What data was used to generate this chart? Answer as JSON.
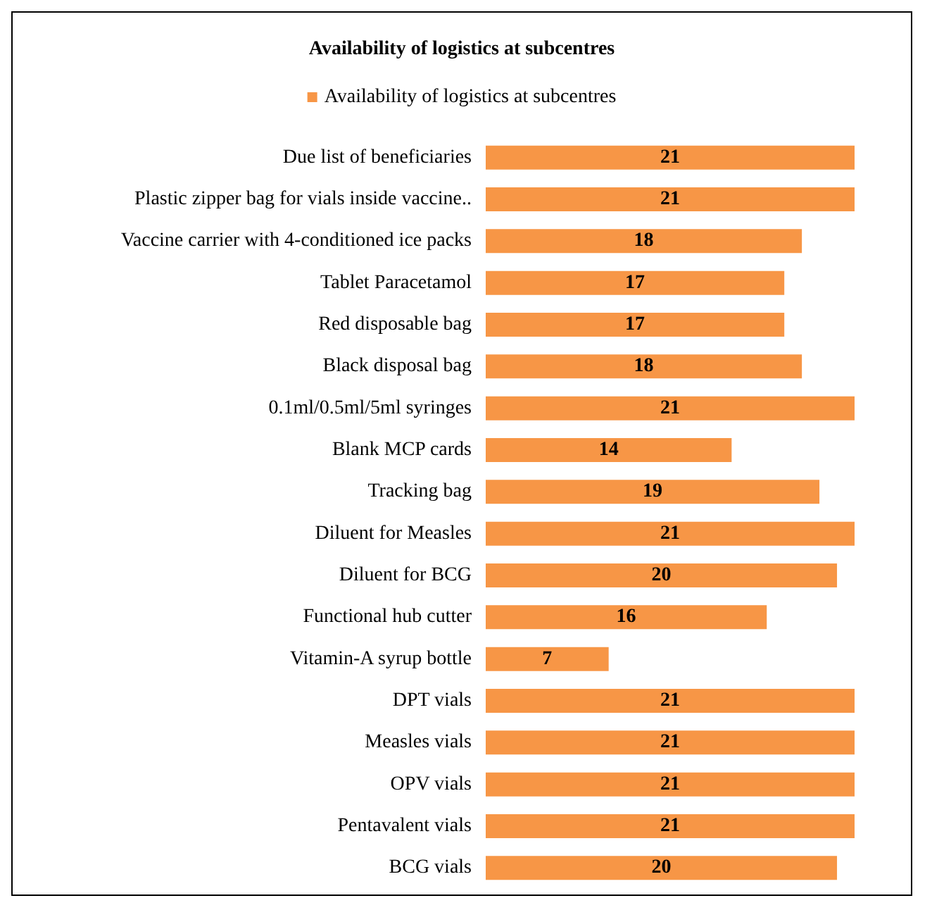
{
  "chart_data": {
    "type": "bar",
    "orientation": "horizontal",
    "title": "Availability of logistics at subcentres",
    "categories": [
      "Due list of beneficiaries",
      "Plastic zipper bag for vials inside vaccine..",
      "Vaccine carrier with 4-conditioned ice packs",
      "Tablet Paracetamol",
      "Red disposable bag",
      "Black disposal bag",
      "0.1ml/0.5ml/5ml syringes",
      "Blank MCP cards",
      "Tracking bag",
      "Diluent for Measles",
      "Diluent for BCG",
      "Functional hub cutter",
      "Vitamin-A syrup bottle",
      "DPT vials",
      "Measles vials",
      "OPV vials",
      "Pentavalent vials",
      "BCG vials"
    ],
    "series": [
      {
        "name": "Availability of logistics at subcentres",
        "color": "#f79646",
        "values": [
          21,
          21,
          18,
          17,
          17,
          18,
          21,
          14,
          19,
          21,
          20,
          16,
          7,
          21,
          21,
          21,
          21,
          20
        ]
      }
    ],
    "data_labels": true,
    "legend": "top"
  }
}
